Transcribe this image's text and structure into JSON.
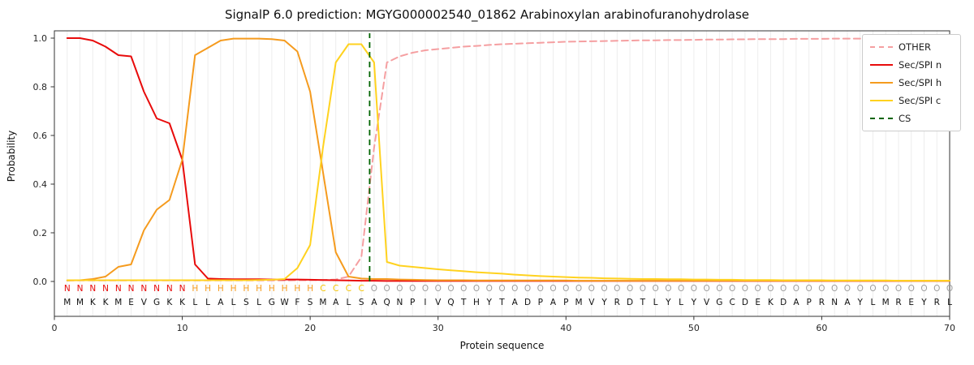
{
  "chart_data": {
    "type": "line",
    "title": "SignalP 6.0 prediction: MGYG000002540_01862 Arabinoxylan arabinofuranohydrolase",
    "xlabel": "Protein sequence",
    "ylabel": "Probability",
    "xlim": [
      0,
      70
    ],
    "ylim": [
      0,
      1.0
    ],
    "x_ticks": [
      0,
      10,
      20,
      30,
      40,
      50,
      60,
      70
    ],
    "y_ticks": [
      "0.0",
      "0.2",
      "0.4",
      "0.6",
      "0.8",
      "1.0"
    ],
    "grid": "vertical line per residue, light gray",
    "legend_position": "upper right",
    "x_start": 1,
    "series": [
      {
        "name": "OTHER",
        "color": "#f59fa1",
        "dash": true,
        "values": [
          0.004,
          0.004,
          0.004,
          0.004,
          0.004,
          0.004,
          0.004,
          0.004,
          0.004,
          0.004,
          0.004,
          0.004,
          0.004,
          0.004,
          0.004,
          0.004,
          0.004,
          0.004,
          0.005,
          0.005,
          0.006,
          0.008,
          0.02,
          0.1,
          0.55,
          0.9,
          0.925,
          0.94,
          0.95,
          0.955,
          0.96,
          0.965,
          0.968,
          0.972,
          0.975,
          0.977,
          0.979,
          0.981,
          0.983,
          0.985,
          0.986,
          0.987,
          0.988,
          0.989,
          0.99,
          0.991,
          0.991,
          0.992,
          0.992,
          0.993,
          0.994,
          0.994,
          0.995,
          0.995,
          0.996,
          0.996,
          0.996,
          0.997,
          0.997,
          0.997,
          0.998,
          0.998,
          0.998,
          0.998,
          0.999,
          0.999,
          0.999,
          0.999,
          0.999,
          0.999
        ]
      },
      {
        "name": "Sec/SPI n",
        "color": "#e80b0b",
        "dash": false,
        "values": [
          1.0,
          1.0,
          0.99,
          0.965,
          0.93,
          0.925,
          0.78,
          0.67,
          0.65,
          0.5,
          0.07,
          0.012,
          0.01,
          0.009,
          0.009,
          0.009,
          0.008,
          0.008,
          0.008,
          0.007,
          0.006,
          0.005,
          0.004,
          0.003,
          0.003,
          0.002,
          0.002,
          0.002,
          0.002,
          0.002,
          0.002,
          0.002,
          0.002,
          0.002,
          0.002,
          0.002,
          0.002,
          0.002,
          0.002,
          0.002,
          0.002,
          0.002,
          0.002,
          0.002,
          0.002,
          0.002,
          0.002,
          0.002,
          0.002,
          0.002,
          0.002,
          0.002,
          0.002,
          0.002,
          0.002,
          0.002,
          0.002,
          0.002,
          0.002,
          0.002,
          0.002,
          0.002,
          0.002,
          0.002,
          0.002,
          0.002,
          0.002,
          0.002,
          0.002,
          0.002
        ]
      },
      {
        "name": "Sec/SPI h",
        "color": "#f59b1e",
        "dash": false,
        "values": [
          0.004,
          0.005,
          0.01,
          0.02,
          0.06,
          0.07,
          0.21,
          0.295,
          0.335,
          0.5,
          0.93,
          0.96,
          0.99,
          0.998,
          0.998,
          0.998,
          0.996,
          0.99,
          0.945,
          0.78,
          0.45,
          0.12,
          0.02,
          0.012,
          0.01,
          0.01,
          0.008,
          0.007,
          0.006,
          0.005,
          0.005,
          0.005,
          0.004,
          0.004,
          0.004,
          0.004,
          0.004,
          0.004,
          0.004,
          0.004,
          0.003,
          0.003,
          0.003,
          0.003,
          0.003,
          0.003,
          0.003,
          0.003,
          0.003,
          0.003,
          0.003,
          0.003,
          0.003,
          0.003,
          0.003,
          0.003,
          0.003,
          0.003,
          0.003,
          0.003,
          0.003,
          0.003,
          0.003,
          0.003,
          0.003,
          0.003,
          0.003,
          0.003,
          0.003,
          0.003
        ]
      },
      {
        "name": "Sec/SPI c",
        "color": "#ffd21f",
        "dash": false,
        "values": [
          0.005,
          0.005,
          0.005,
          0.005,
          0.005,
          0.005,
          0.005,
          0.005,
          0.005,
          0.005,
          0.005,
          0.005,
          0.005,
          0.005,
          0.005,
          0.006,
          0.007,
          0.01,
          0.055,
          0.15,
          0.55,
          0.9,
          0.975,
          0.975,
          0.9,
          0.08,
          0.065,
          0.06,
          0.055,
          0.05,
          0.046,
          0.042,
          0.038,
          0.035,
          0.032,
          0.028,
          0.025,
          0.022,
          0.02,
          0.018,
          0.016,
          0.015,
          0.013,
          0.012,
          0.011,
          0.01,
          0.01,
          0.009,
          0.009,
          0.008,
          0.008,
          0.007,
          0.007,
          0.006,
          0.006,
          0.006,
          0.005,
          0.005,
          0.005,
          0.005,
          0.004,
          0.004,
          0.004,
          0.004,
          0.004,
          0.003,
          0.003,
          0.003,
          0.003,
          0.003
        ]
      }
    ],
    "cs_line": {
      "name": "CS",
      "color": "#006400",
      "dash": true,
      "position": 24.65
    },
    "sequence": "MMKKMEVGKKLLALSLGWFSMALSAQNPIVQTHYTADPAPMVYRDTLYLYVGCDEKDAPRNAYLMREYRL",
    "region_labels": "NNNNNNNNNNHHHHHHHHHHCCCCOOOOOOOOOOOOOOOOOOOOOOOOOOOOOOOOOOOOOOOOOOOOOO",
    "colors": {
      "grid": "#ededed",
      "frame": "#333333",
      "sequence_text": "#111111",
      "regions": {
        "N": "#e80b0b",
        "H": "#f59b1e",
        "C": "#f5c400",
        "O": "#9e9e9e"
      }
    },
    "legend": [
      {
        "label": "OTHER",
        "color": "#f59fa1",
        "dash": true
      },
      {
        "label": "Sec/SPI n",
        "color": "#e80b0b",
        "dash": false
      },
      {
        "label": "Sec/SPI h",
        "color": "#f59b1e",
        "dash": false
      },
      {
        "label": "Sec/SPI c",
        "color": "#ffd21f",
        "dash": false
      },
      {
        "label": "CS",
        "color": "#006400",
        "dash": true
      }
    ]
  }
}
